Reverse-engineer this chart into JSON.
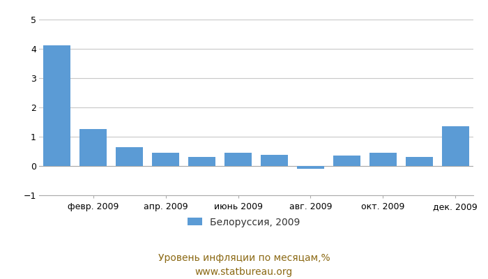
{
  "months": [
    1,
    2,
    3,
    4,
    5,
    6,
    7,
    8,
    9,
    10,
    11,
    12
  ],
  "xtick_labels": [
    "февр. 2009",
    "апр. 2009",
    "июнь 2009",
    "авг. 2009",
    "окт. 2009",
    "дек. 2009"
  ],
  "xtick_positions": [
    2,
    4,
    6,
    8,
    10,
    12
  ],
  "values": [
    4.12,
    1.26,
    0.65,
    0.45,
    0.32,
    0.46,
    0.38,
    -0.1,
    0.35,
    0.46,
    0.32,
    1.36
  ],
  "bar_color": "#5b9bd5",
  "ylim": [
    -1,
    5
  ],
  "yticks": [
    -1,
    0,
    1,
    2,
    3,
    4,
    5
  ],
  "legend_label": "Белоруссия, 2009",
  "xlabel": "Уровень инфляции по месяцам,%",
  "source": "www.statbureau.org",
  "background_color": "#ffffff",
  "grid_color": "#c8c8c8",
  "tick_fontsize": 9,
  "legend_fontsize": 10,
  "text_fontsize": 10,
  "text_color": "#8b6914"
}
